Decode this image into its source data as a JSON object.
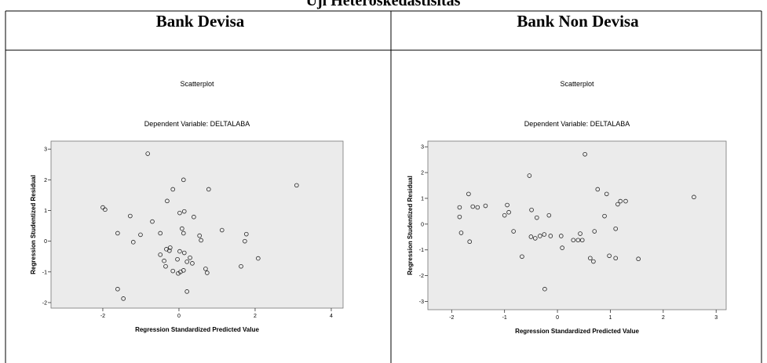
{
  "title": "Uji Heteroskedastisitas",
  "table": {
    "headers": [
      "Bank Devisa",
      "Bank Non Devisa"
    ]
  },
  "chart_data": [
    {
      "type": "scatter",
      "title": "Scatterplot",
      "subtitle": "Dependent Variable: DELTALABA",
      "xlabel": "Regression Standardized Predicted Value",
      "ylabel": "Regression Studentized Residual",
      "color": "#222222",
      "xlim": [
        -3.36,
        4.31
      ],
      "xticks": [
        -2,
        0,
        2,
        4
      ],
      "ylim": [
        -2.18,
        3.26
      ],
      "yticks": [
        -2,
        -1,
        0,
        1,
        2,
        3
      ],
      "x": [
        -0.82,
        0.12,
        -0.16,
        0.78,
        3.09,
        -2.0,
        -1.94,
        -0.31,
        0.02,
        0.14,
        0.39,
        -1.28,
        -0.7,
        0.08,
        -1.61,
        -1.01,
        -0.49,
        0.12,
        0.54,
        0.58,
        1.13,
        1.77,
        1.73,
        -1.2,
        -0.23,
        -0.33,
        -0.25,
        0.02,
        0.14,
        -0.49,
        -0.04,
        0.29,
        2.08,
        -0.39,
        0.21,
        0.35,
        -0.35,
        0.7,
        0.74,
        1.63,
        -0.16,
        0.04,
        0.12,
        -0.02,
        0.21,
        -1.61,
        -1.46
      ],
      "values": [
        2.85,
        2.0,
        1.69,
        1.69,
        1.82,
        1.1,
        1.03,
        1.31,
        0.92,
        0.97,
        0.79,
        0.82,
        0.64,
        0.41,
        0.26,
        0.21,
        0.26,
        0.26,
        0.18,
        0.03,
        0.36,
        0.23,
        0.0,
        -0.03,
        -0.21,
        -0.26,
        -0.31,
        -0.33,
        -0.38,
        -0.44,
        -0.59,
        -0.54,
        -0.56,
        -0.64,
        -0.67,
        -0.72,
        -0.82,
        -0.9,
        -1.03,
        -0.82,
        -0.97,
        -1.0,
        -0.95,
        -1.05,
        -1.64,
        -1.56,
        -1.87
      ]
    },
    {
      "type": "scatter",
      "title": "Scatterplot",
      "subtitle": "Dependent Variable: DELTALABA",
      "xlabel": "Regression Standardized Predicted Value",
      "ylabel": "Regression Studentized Residual",
      "color": "#222222",
      "xlim": [
        -2.45,
        3.19
      ],
      "xticks": [
        -2,
        -1,
        0,
        1,
        2,
        3
      ],
      "ylim": [
        -3.32,
        3.22
      ],
      "yticks": [
        -3,
        -2,
        -1,
        0,
        1,
        2,
        3
      ],
      "x": [
        0.52,
        -0.53,
        -1.68,
        -1.85,
        -1.6,
        -1.51,
        -1.36,
        -0.95,
        -1.0,
        -0.92,
        -0.49,
        -0.39,
        -0.16,
        0.76,
        0.93,
        1.19,
        1.29,
        0.89,
        1.14,
        2.58,
        -1.85,
        -1.82,
        -1.66,
        -0.83,
        -0.5,
        -0.42,
        -0.33,
        -0.25,
        -0.13,
        0.07,
        0.3,
        0.39,
        0.47,
        0.43,
        0.7,
        1.1,
        0.09,
        -0.67,
        0.62,
        0.68,
        0.98,
        1.1,
        1.53,
        -0.24
      ],
      "values": [
        2.71,
        1.88,
        1.17,
        0.65,
        0.68,
        0.65,
        0.71,
        0.74,
        0.34,
        0.46,
        0.55,
        0.25,
        0.34,
        1.35,
        1.17,
        0.89,
        0.89,
        0.31,
        0.77,
        1.05,
        0.28,
        -0.34,
        -0.68,
        -0.28,
        -0.49,
        -0.55,
        -0.46,
        -0.4,
        -0.46,
        -0.46,
        -0.62,
        -0.62,
        -0.62,
        -0.37,
        -0.28,
        -0.18,
        -0.92,
        -1.26,
        -1.32,
        -1.45,
        -1.23,
        -1.32,
        -1.35,
        -2.52
      ]
    }
  ]
}
